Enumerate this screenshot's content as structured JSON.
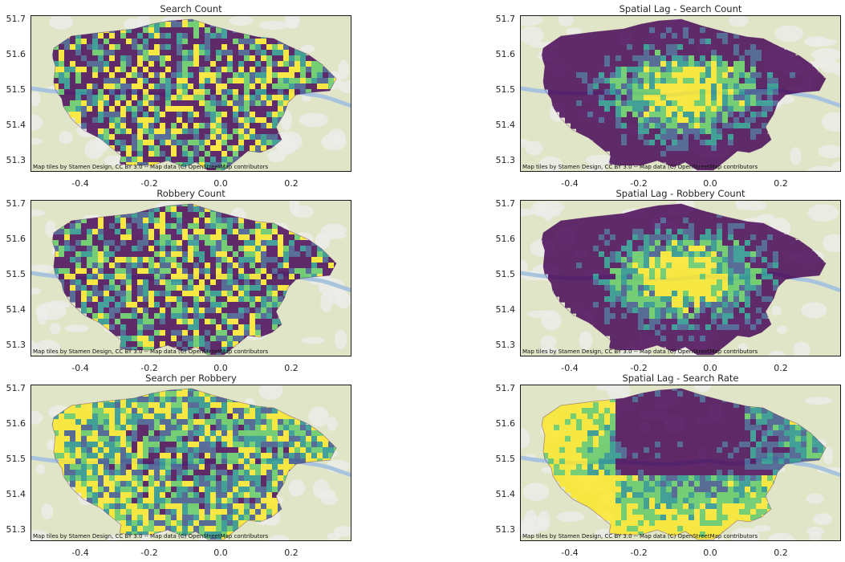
{
  "colors": {
    "viridis": [
      "#440154",
      "#3b528b",
      "#21918c",
      "#5ec962",
      "#fde725"
    ],
    "basemap_land": "#dfe5c6",
    "basemap_water": "#a8c3dd",
    "basemap_urban": "#ececea"
  },
  "attribution": "Map tiles by Stamen Design, CC BY 3.0 -- Map data (C) OpenStreetMap contributors",
  "axes": {
    "x_ticks": [
      "-0.4",
      "-0.2",
      "0.0",
      "0.2"
    ],
    "y_ticks": [
      "51.7",
      "51.6",
      "51.5",
      "51.4",
      "51.3"
    ],
    "xlim": [
      -0.55,
      0.38
    ],
    "ylim": [
      51.27,
      51.72
    ]
  },
  "chart_data": [
    {
      "type": "map",
      "title": "Search Count",
      "pattern": "mixed"
    },
    {
      "type": "map",
      "title": "Spatial Lag - Search Count",
      "pattern": "center"
    },
    {
      "type": "map",
      "title": "Robbery Count",
      "pattern": "mixed"
    },
    {
      "type": "map",
      "title": "Spatial Lag - Robbery Count",
      "pattern": "center"
    },
    {
      "type": "map",
      "title": "Search per Robbery",
      "pattern": "mixed_outer"
    },
    {
      "type": "map",
      "title": "Spatial Lag - Search Rate",
      "pattern": "outer"
    }
  ]
}
